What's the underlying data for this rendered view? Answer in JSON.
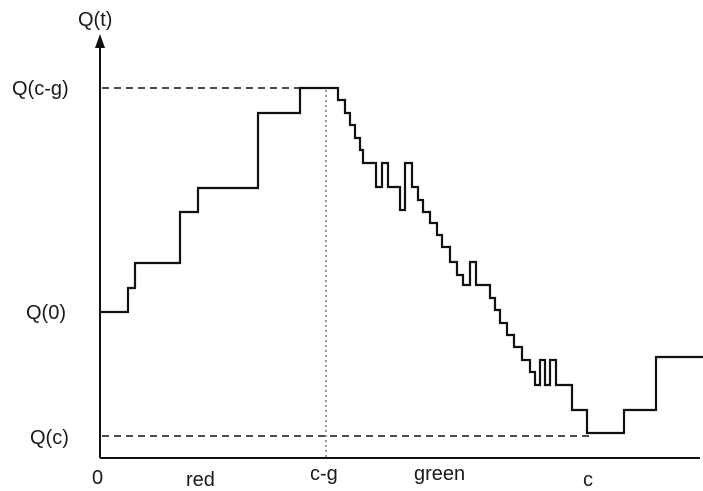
{
  "diagram": {
    "y_axis_label": "Q(t)",
    "y_labels": {
      "q_cg": "Q(c-g)",
      "q_0": "Q(0)",
      "q_c": "Q(c)"
    },
    "x_labels": {
      "zero": "0",
      "red": "red",
      "cg": "c-g",
      "green": "green",
      "c": "c"
    }
  }
}
